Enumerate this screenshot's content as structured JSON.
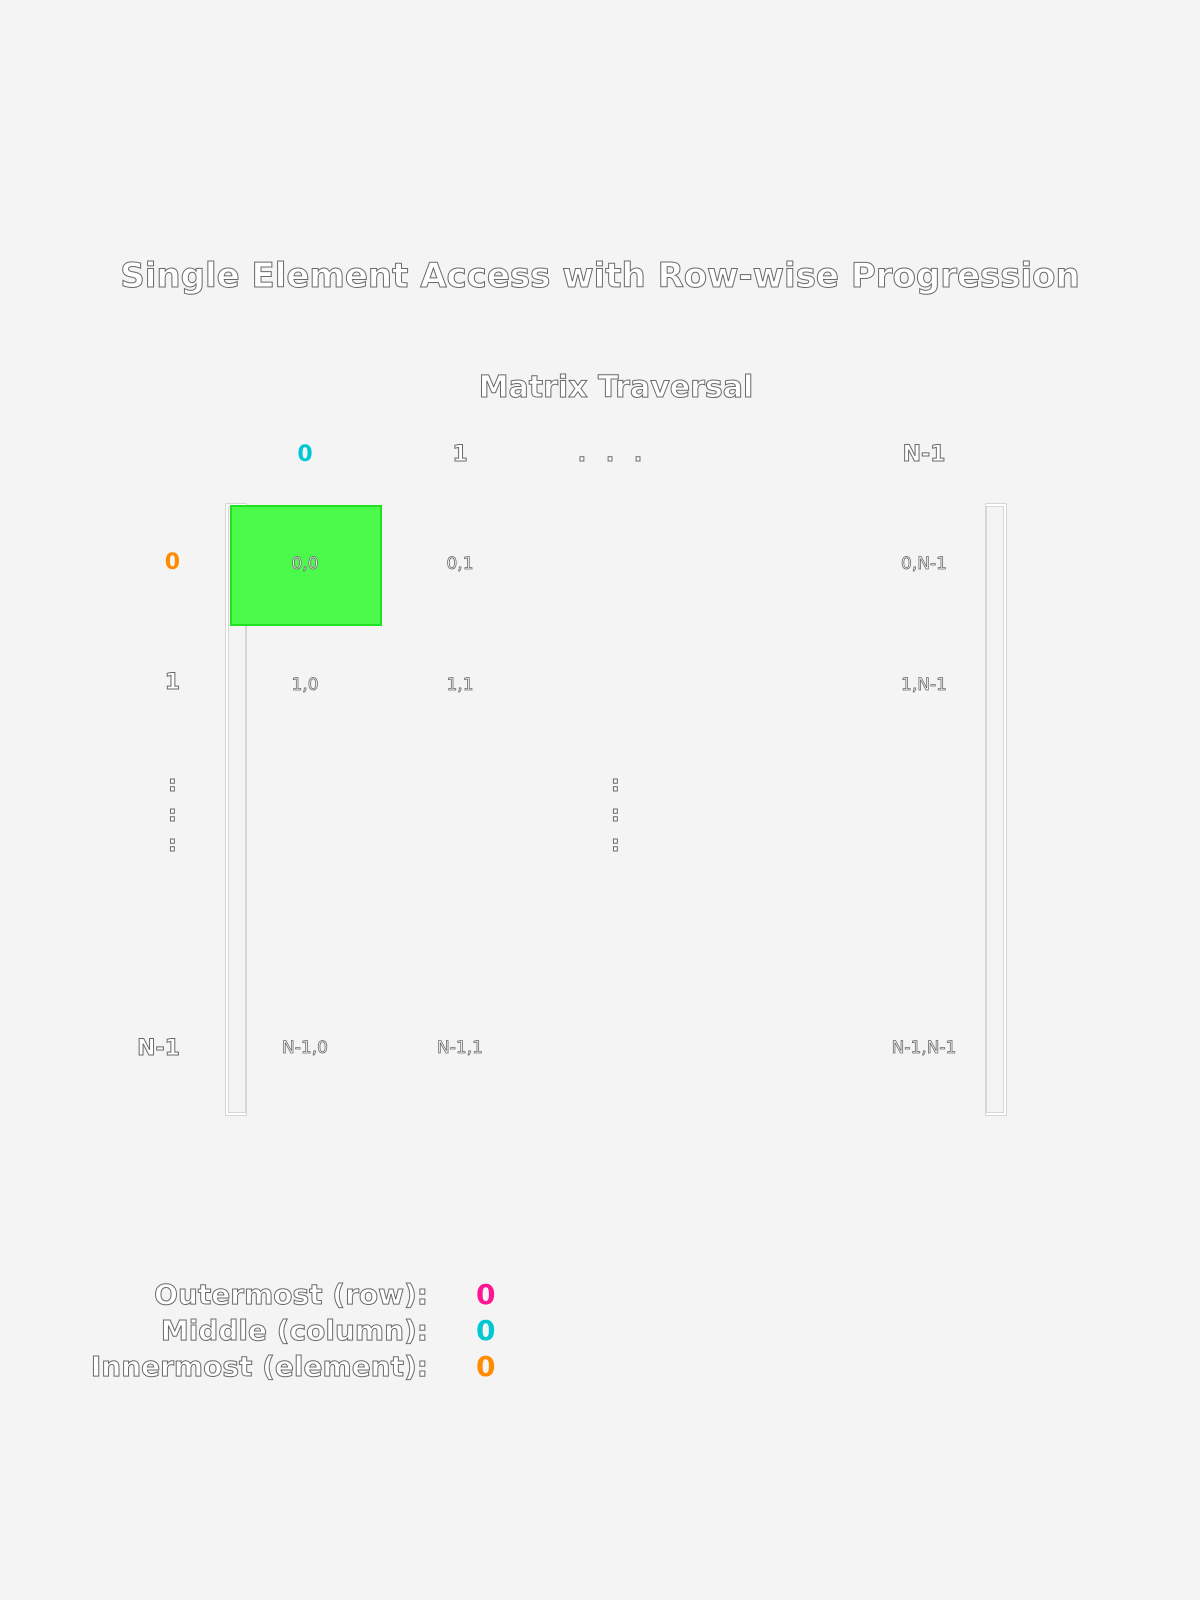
{
  "title": "Single Element Access with Row-wise Progression",
  "subtitle": "Matrix Traversal",
  "column_headers": [
    "0",
    "1",
    ". . .",
    "N-1"
  ],
  "row_headers": [
    "0",
    "1",
    ":",
    "N-1"
  ],
  "cells": {
    "r0": [
      "0,0",
      "0,1",
      "0,N-1"
    ],
    "r1": [
      "1,0",
      "1,1",
      "1,N-1"
    ],
    "rlast": [
      "N-1,0",
      "N-1,1",
      "N-1,N-1"
    ]
  },
  "middle_vdots": ":",
  "highlighted_cell": "0,0",
  "legend": {
    "outer_label": "Outermost (row):",
    "outer_value": "0",
    "middle_label": "Middle (column):",
    "middle_value": "0",
    "inner_label": "Innermost (element):",
    "inner_value": "0"
  },
  "colors": {
    "background": "#f4f4f4",
    "highlight_fill": "#4cfa4c",
    "highlight_border": "#22e022",
    "row_accent": "#ff1493",
    "column_accent": "#00c8d2",
    "element_accent": "#ff8c00"
  }
}
